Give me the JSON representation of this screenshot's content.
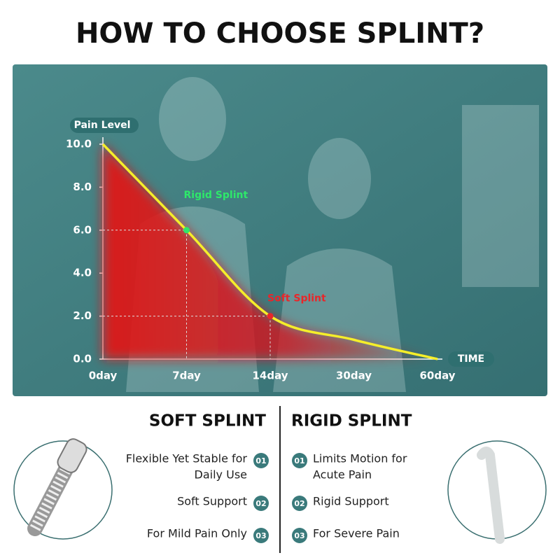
{
  "title": "HOW TO CHOOSE SPLINT?",
  "chart_data": {
    "type": "line",
    "y_label": "Pain Level",
    "x_label": "TIME",
    "categories": [
      "0day",
      "7day",
      "14day",
      "30day",
      "60day"
    ],
    "series": [
      {
        "color": "#f5ee2a",
        "values": [
          10.0,
          6.0,
          2.0,
          0.9,
          0.0
        ]
      }
    ],
    "annotations": [
      null,
      "Rigid Splint",
      "Soft Splint",
      null,
      null
    ],
    "annotation_colors": [
      null,
      "#2ee86a",
      "#e8262a",
      null,
      null
    ],
    "ylim": [
      0,
      10
    ],
    "yticks": [
      {
        "value": 0,
        "label": "0.0"
      },
      {
        "value": 2,
        "label": "2.0"
      },
      {
        "value": 4,
        "label": "4.0"
      },
      {
        "value": 6,
        "label": "6.0"
      },
      {
        "value": 8,
        "label": "8.0"
      },
      {
        "value": 10,
        "label": "10.0"
      }
    ],
    "grid": false
  },
  "comparison": {
    "left": {
      "heading": "SOFT SPLINT",
      "items": [
        {
          "number": "01",
          "lines": [
            "Flexible Yet Stable for",
            "Daily Use"
          ]
        },
        {
          "number": "02",
          "lines": [
            "Soft Support"
          ]
        },
        {
          "number": "03",
          "lines": [
            "For Mild Pain Only"
          ]
        }
      ]
    },
    "right": {
      "heading": "RIGID SPLINT",
      "items": [
        {
          "number": "01",
          "lines": [
            "Limits Motion for",
            "Acute Pain"
          ]
        },
        {
          "number": "02",
          "lines": [
            "Rigid Support"
          ]
        },
        {
          "number": "03",
          "lines": [
            "For Severe Pain"
          ]
        }
      ]
    }
  }
}
